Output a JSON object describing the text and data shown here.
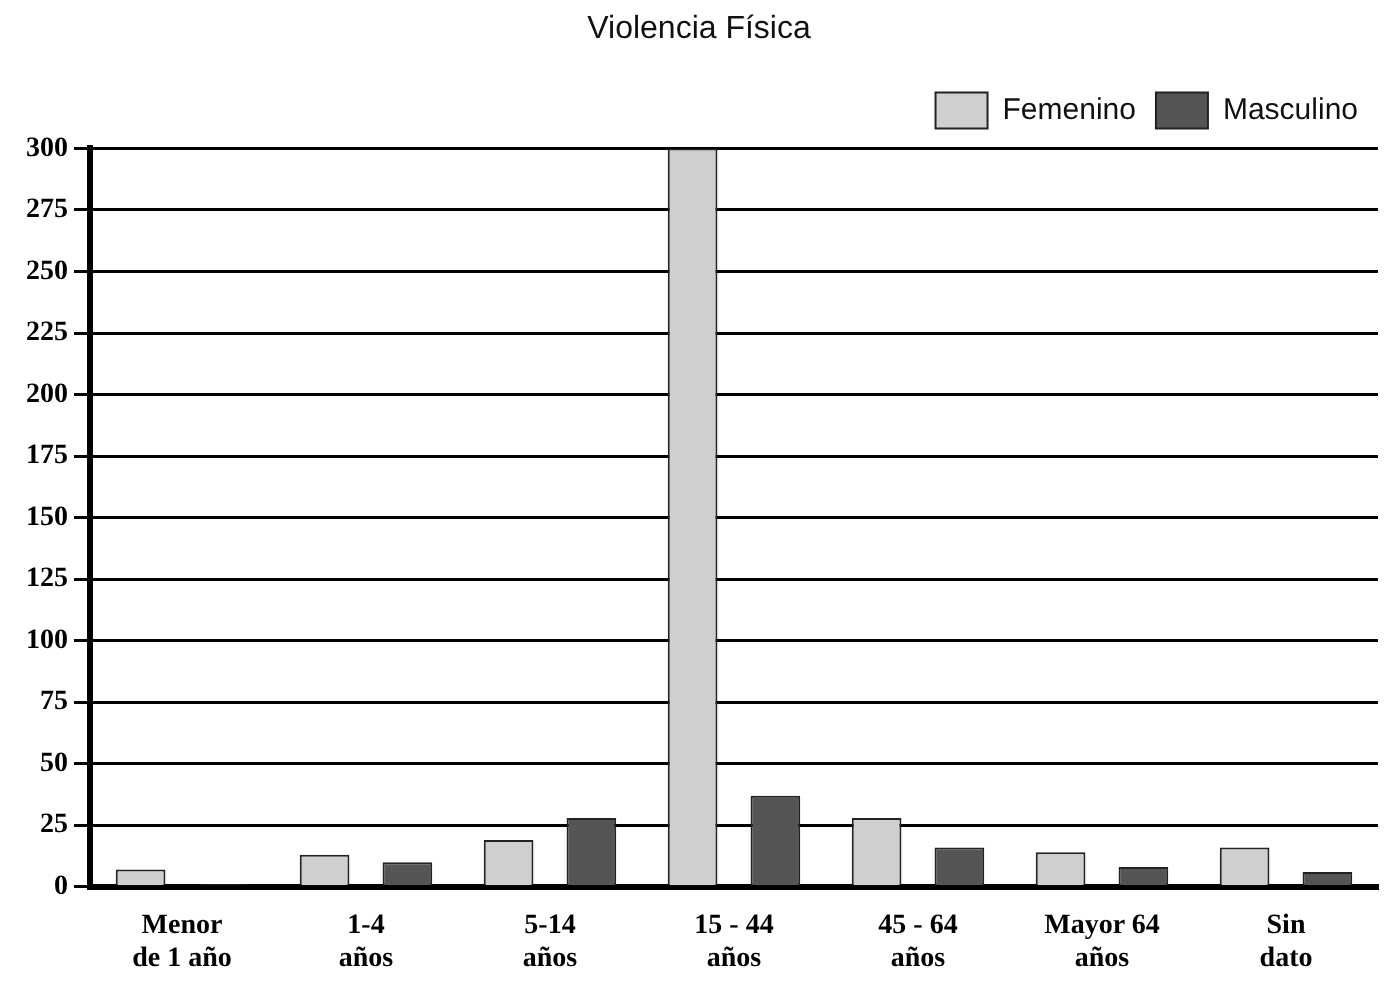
{
  "chart_data": {
    "type": "bar",
    "title": "Violencia Física",
    "categories": [
      "Menor\nde 1 año",
      "1-4\naños",
      "5-14\naños",
      "15 - 44\naños",
      "45 - 64\naños",
      "Mayor 64\naños",
      "Sin\ndato"
    ],
    "series": [
      {
        "name": "Femenino",
        "color": "#cfcfcf",
        "values": [
          7,
          13,
          19,
          300,
          28,
          14,
          16
        ]
      },
      {
        "name": "Masculino",
        "color": "#555555",
        "values": [
          1,
          10,
          28,
          37,
          16,
          8,
          6
        ]
      }
    ],
    "ylim": [
      0,
      300
    ],
    "yticks": [
      0,
      25,
      50,
      75,
      100,
      125,
      150,
      175,
      200,
      225,
      250,
      275,
      300
    ],
    "grid": "y",
    "legend": "top right"
  }
}
